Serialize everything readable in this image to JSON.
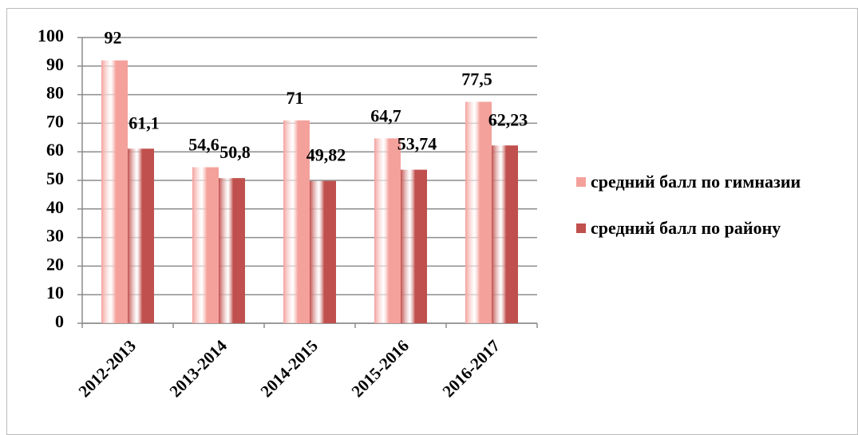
{
  "chart_data": {
    "type": "bar",
    "categories": [
      "2012-2013",
      "2013-2014",
      "2014-2015",
      "2015-2016",
      "2016-2017"
    ],
    "series": [
      {
        "name": "средний балл по гимназии",
        "color": "#f4a19c",
        "values": [
          92,
          54.6,
          71,
          64.7,
          77.5
        ],
        "value_labels": [
          "92",
          "54,6",
          "71",
          "64,7",
          "77,5"
        ]
      },
      {
        "name": "средний балл по району",
        "color": "#c0504d",
        "values": [
          61.1,
          50.8,
          49.82,
          53.74,
          62.23
        ],
        "value_labels": [
          "61,1",
          "50,8",
          "49,82",
          "53,74",
          "62,23"
        ]
      }
    ],
    "ylim": [
      0,
      100
    ],
    "yticks": [
      0,
      10,
      20,
      30,
      40,
      50,
      60,
      70,
      80,
      90,
      100
    ],
    "grid": true,
    "legend": "right"
  }
}
